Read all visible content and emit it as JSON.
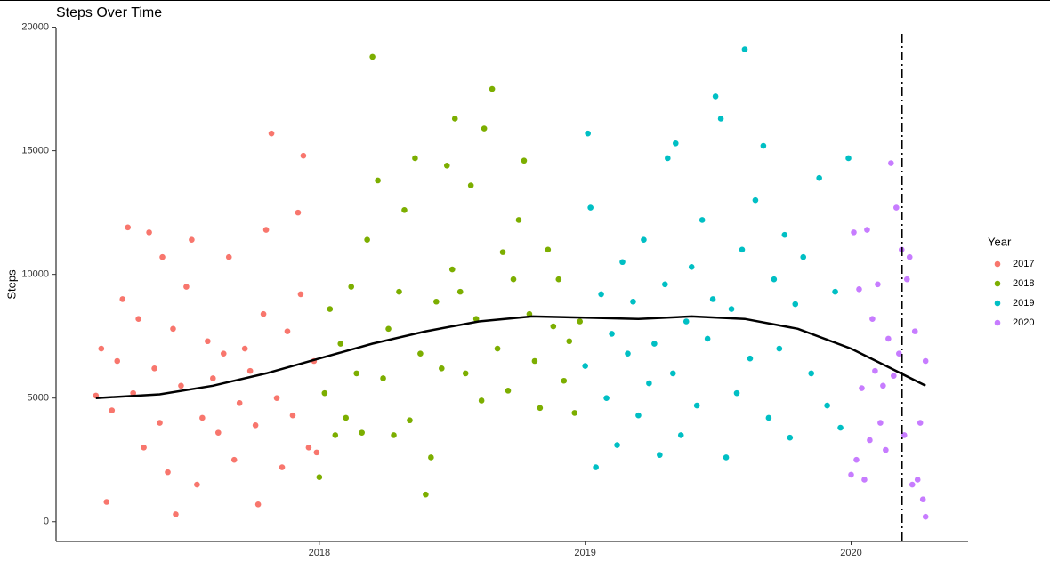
{
  "chart_data": {
    "type": "scatter",
    "title": "Steps Over Time",
    "y_label": "Steps",
    "legend_title": "Year",
    "legend_position": "right",
    "grid": false,
    "xlim": [
      2017.01,
      2020.44
    ],
    "xticks": [
      2018,
      2019,
      2020
    ],
    "ylim": [
      -800,
      20200
    ],
    "yticks": [
      0,
      5000,
      10000,
      15000,
      20000
    ],
    "series": [
      {
        "name": "2017",
        "color": "#F8766D",
        "x": [
          2017.16,
          2017.18,
          2017.2,
          2017.22,
          2017.24,
          2017.26,
          2017.28,
          2017.3,
          2017.32,
          2017.34,
          2017.36,
          2017.38,
          2017.4,
          2017.41,
          2017.43,
          2017.45,
          2017.46,
          2017.48,
          2017.5,
          2017.52,
          2017.54,
          2017.56,
          2017.58,
          2017.6,
          2017.62,
          2017.64,
          2017.66,
          2017.68,
          2017.7,
          2017.72,
          2017.74,
          2017.76,
          2017.77,
          2017.79,
          2017.8,
          2017.82,
          2017.84,
          2017.86,
          2017.88,
          2017.9,
          2017.92,
          2017.93,
          2017.94,
          2017.96,
          2017.98,
          2017.99
        ],
        "values": [
          5100,
          7000,
          800,
          4500,
          6500,
          9000,
          11900,
          5200,
          8200,
          3000,
          11700,
          6200,
          4000,
          10700,
          2000,
          7800,
          300,
          5500,
          9500,
          11400,
          1500,
          4200,
          7300,
          5800,
          3600,
          6800,
          10700,
          2500,
          4800,
          7000,
          6100,
          3900,
          700,
          8400,
          11800,
          15700,
          5000,
          2200,
          7700,
          4300,
          12500,
          9200,
          14800,
          3000,
          6500,
          2800
        ]
      },
      {
        "name": "2018",
        "color": "#7CAE00",
        "x": [
          2018.0,
          2018.02,
          2018.04,
          2018.06,
          2018.08,
          2018.1,
          2018.12,
          2018.14,
          2018.16,
          2018.18,
          2018.2,
          2018.22,
          2018.24,
          2018.26,
          2018.28,
          2018.3,
          2018.32,
          2018.34,
          2018.36,
          2018.38,
          2018.4,
          2018.42,
          2018.44,
          2018.46,
          2018.48,
          2018.5,
          2018.51,
          2018.53,
          2018.55,
          2018.57,
          2018.59,
          2018.61,
          2018.62,
          2018.65,
          2018.67,
          2018.69,
          2018.71,
          2018.73,
          2018.75,
          2018.77,
          2018.79,
          2018.81,
          2018.83,
          2018.86,
          2018.88,
          2018.9,
          2018.92,
          2018.94,
          2018.96,
          2018.98
        ],
        "values": [
          1800,
          5200,
          8600,
          3500,
          7200,
          4200,
          9500,
          6000,
          3600,
          11400,
          18800,
          13800,
          5800,
          7800,
          3500,
          9300,
          12600,
          4100,
          14700,
          6800,
          1100,
          2600,
          8900,
          6200,
          14400,
          10200,
          16300,
          9300,
          6000,
          13600,
          8200,
          4900,
          15900,
          17500,
          7000,
          10900,
          5300,
          9800,
          12200,
          14600,
          8400,
          6500,
          4600,
          11000,
          7900,
          9800,
          5700,
          7300,
          4400,
          8100
        ]
      },
      {
        "name": "2019",
        "color": "#00BFC4",
        "x": [
          2019.0,
          2019.01,
          2019.02,
          2019.04,
          2019.06,
          2019.08,
          2019.1,
          2019.12,
          2019.14,
          2019.16,
          2019.18,
          2019.2,
          2019.22,
          2019.24,
          2019.26,
          2019.28,
          2019.3,
          2019.31,
          2019.33,
          2019.34,
          2019.36,
          2019.38,
          2019.4,
          2019.42,
          2019.44,
          2019.46,
          2019.48,
          2019.49,
          2019.51,
          2019.53,
          2019.55,
          2019.57,
          2019.59,
          2019.6,
          2019.62,
          2019.64,
          2019.67,
          2019.69,
          2019.71,
          2019.73,
          2019.75,
          2019.77,
          2019.79,
          2019.82,
          2019.85,
          2019.88,
          2019.91,
          2019.94,
          2019.96,
          2019.99
        ],
        "values": [
          6300,
          15700,
          12700,
          2200,
          9200,
          5000,
          7600,
          3100,
          10500,
          6800,
          8900,
          4300,
          11400,
          5600,
          7200,
          2700,
          9600,
          14700,
          6000,
          15300,
          3500,
          8100,
          10300,
          4700,
          12200,
          7400,
          9000,
          17200,
          16300,
          2600,
          8600,
          5200,
          11000,
          19100,
          6600,
          13000,
          15200,
          4200,
          9800,
          7000,
          11600,
          3400,
          8800,
          10700,
          6000,
          13900,
          4700,
          9300,
          3800,
          14700
        ]
      },
      {
        "name": "2020",
        "color": "#C77CFF",
        "x": [
          2020.0,
          2020.01,
          2020.02,
          2020.03,
          2020.04,
          2020.05,
          2020.06,
          2020.07,
          2020.08,
          2020.09,
          2020.1,
          2020.11,
          2020.12,
          2020.13,
          2020.14,
          2020.15,
          2020.16,
          2020.17,
          2020.18,
          2020.19,
          2020.2,
          2020.21,
          2020.22,
          2020.23,
          2020.24,
          2020.25,
          2020.26,
          2020.27,
          2020.28,
          2020.28
        ],
        "values": [
          1900,
          11700,
          2500,
          9400,
          5400,
          1700,
          11800,
          3300,
          8200,
          6100,
          9600,
          4000,
          5500,
          2900,
          7400,
          14500,
          5900,
          12700,
          6800,
          11000,
          3500,
          9800,
          10700,
          1500,
          7700,
          1700,
          4000,
          900,
          6500,
          200
        ]
      }
    ],
    "trend": {
      "color": "#000000",
      "x": [
        2017.16,
        2017.4,
        2017.6,
        2017.8,
        2018.0,
        2018.2,
        2018.4,
        2018.6,
        2018.8,
        2019.0,
        2019.2,
        2019.4,
        2019.6,
        2019.8,
        2020.0,
        2020.15,
        2020.28
      ],
      "values": [
        5000,
        5150,
        5500,
        6000,
        6600,
        7200,
        7700,
        8100,
        8300,
        8250,
        8200,
        8300,
        8200,
        7800,
        7000,
        6200,
        5500
      ]
    },
    "vline": 2020.19
  }
}
